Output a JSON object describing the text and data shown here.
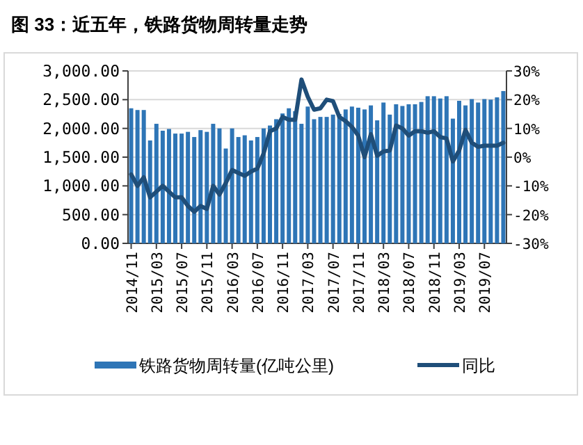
{
  "chart_data": {
    "type": "bar",
    "title": "图 33：近五年，铁路货物周转量走势",
    "categories": [
      "2014/11",
      null,
      null,
      null,
      "2015/03",
      null,
      null,
      null,
      "2015/07",
      null,
      null,
      null,
      "2015/11",
      null,
      null,
      null,
      "2016/03",
      null,
      null,
      null,
      "2016/07",
      null,
      null,
      null,
      "2016/11",
      null,
      null,
      null,
      "2017/03",
      null,
      null,
      null,
      "2017/07",
      null,
      null,
      null,
      "2017/11",
      null,
      null,
      null,
      "2018/03",
      null,
      null,
      null,
      "2018/07",
      null,
      null,
      null,
      "2018/11",
      null,
      null,
      null,
      "2019/03",
      null,
      null,
      null,
      "2019/07",
      null,
      null,
      null
    ],
    "series": [
      {
        "name": "铁路货物周转量(亿吨公里)",
        "color": "#2e75b6",
        "values": [
          2350,
          2320,
          2320,
          1790,
          2080,
          1960,
          1990,
          1910,
          1910,
          1940,
          1850,
          1970,
          1940,
          2080,
          2000,
          1650,
          2000,
          1850,
          1880,
          1790,
          1850,
          2000,
          2050,
          2160,
          2260,
          2350,
          2300,
          2080,
          2380,
          2160,
          2200,
          2200,
          2240,
          2250,
          2330,
          2380,
          2360,
          2330,
          2400,
          2140,
          2450,
          2240,
          2420,
          2390,
          2420,
          2420,
          2460,
          2560,
          2560,
          2520,
          2560,
          2170,
          2480,
          2400,
          2510,
          2450,
          2510,
          2500,
          2540,
          2650
        ]
      },
      {
        "name": "同比",
        "type": "line",
        "axis": "y2",
        "color": "#1f4e79",
        "values": [
          -6,
          -10,
          -7,
          -14,
          -12,
          -10,
          -12,
          -14,
          -14,
          -17,
          -19,
          -17,
          -18,
          -10,
          -13,
          -9,
          -4.5,
          -5.5,
          -6.5,
          -5,
          -4,
          1.3,
          9,
          10,
          14,
          13,
          13,
          27,
          21,
          16.5,
          17,
          20,
          19.5,
          14,
          12.5,
          10.5,
          7.5,
          0,
          8,
          0.5,
          2,
          2.3,
          11,
          10,
          7.5,
          9,
          9,
          8.5,
          9,
          7,
          6.5,
          -1.5,
          2.3,
          9.5,
          5,
          3.6,
          4,
          4,
          4,
          5
        ]
      }
    ],
    "ylim": [
      0,
      3000
    ],
    "yticks": [
      {
        "value": 0,
        "label": "0.00"
      },
      {
        "value": 500,
        "label": "500.00"
      },
      {
        "value": 1000,
        "label": "1,000.00"
      },
      {
        "value": 1500,
        "label": "1,500.00"
      },
      {
        "value": 2000,
        "label": "2,000.00"
      },
      {
        "value": 2500,
        "label": "2,500.00"
      },
      {
        "value": 3000,
        "label": "3,000.00"
      }
    ],
    "y2lim": [
      -30,
      30
    ],
    "y2ticks": [
      {
        "value": -30,
        "label": "-30%"
      },
      {
        "value": -20,
        "label": "-20%"
      },
      {
        "value": -10,
        "label": "-10%"
      },
      {
        "value": 0,
        "label": "0%"
      },
      {
        "value": 10,
        "label": "10%"
      },
      {
        "value": 20,
        "label": "20%"
      },
      {
        "value": 30,
        "label": "30%"
      }
    ],
    "grid": "y",
    "legend": "bottom"
  }
}
